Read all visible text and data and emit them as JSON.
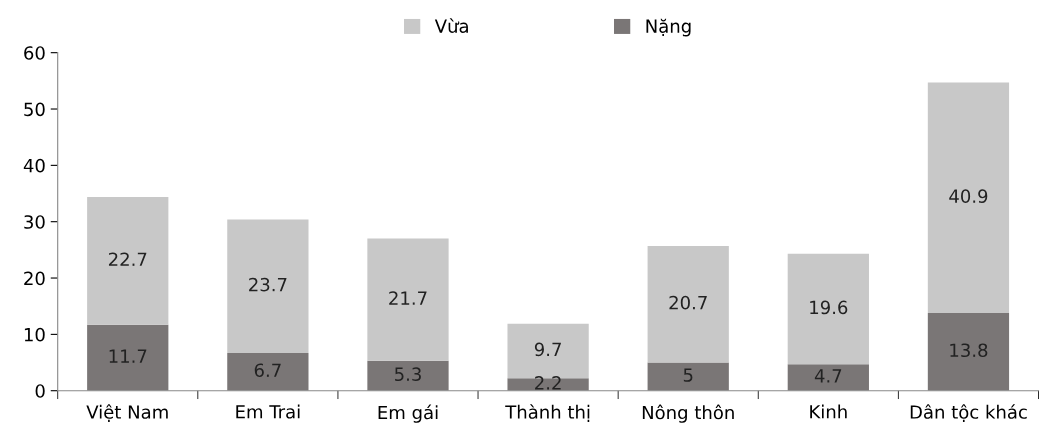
{
  "chart_data": {
    "type": "bar",
    "stacked": true,
    "categories": [
      "Việt Nam",
      "Em Trai",
      "Em gái",
      "Thành thị",
      "Nông thôn",
      "Kinh",
      "Dân tộc khác"
    ],
    "series": [
      {
        "name": "Nặng",
        "color": "#7a7676",
        "values": [
          11.7,
          6.7,
          5.3,
          2.2,
          5,
          4.7,
          13.8
        ]
      },
      {
        "name": "Vừa",
        "color": "#c8c8c8",
        "values": [
          22.7,
          23.7,
          21.7,
          9.7,
          20.7,
          19.6,
          40.9
        ]
      }
    ],
    "ylim": [
      0,
      60
    ],
    "yticks": [
      0,
      10,
      20,
      30,
      40,
      50,
      60
    ],
    "data_labels": true,
    "grid": false,
    "legend": "top"
  }
}
